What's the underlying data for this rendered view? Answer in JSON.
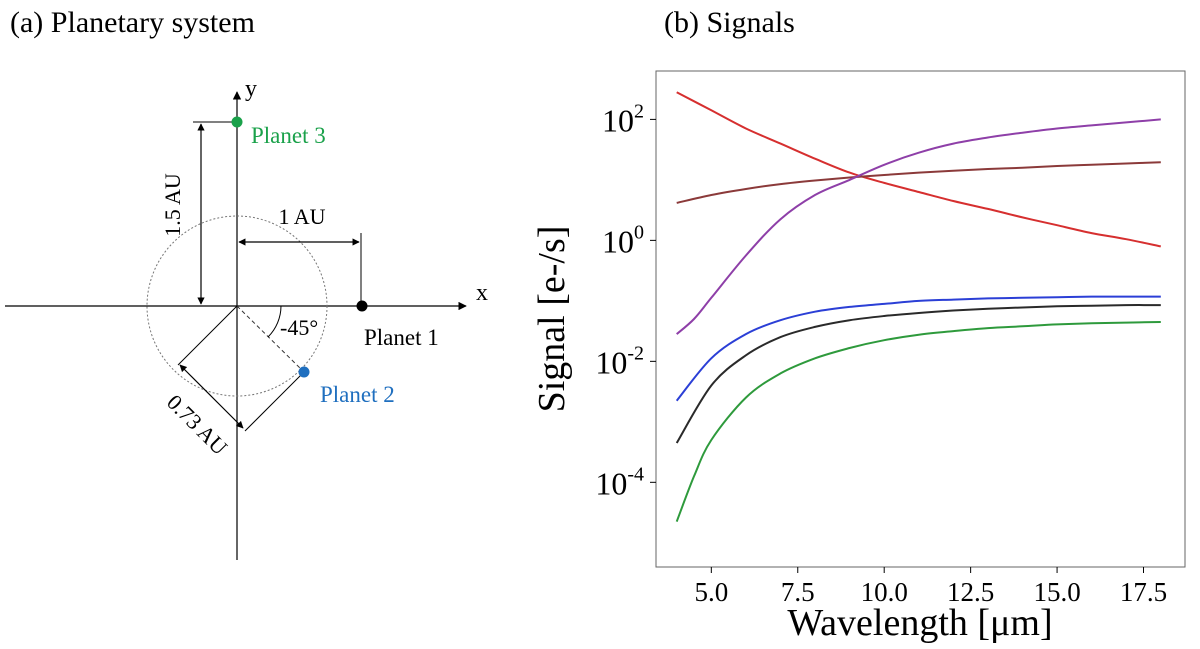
{
  "panel_a": {
    "title": "(a) Planetary system",
    "axis_x_label": "x",
    "axis_y_label": "y",
    "planets": [
      {
        "name": "Planet 1",
        "color": "#000000"
      },
      {
        "name": "Planet 2",
        "color": "#1f6fbf"
      },
      {
        "name": "Planet 3",
        "color": "#1aa14a"
      }
    ],
    "dim_15": "1.5 AU",
    "dim_1": "1 AU",
    "dim_073": "0.73 AU",
    "angle": "-45°"
  },
  "chart_data": {
    "type": "line",
    "title": "(b) Signals",
    "xlabel": "Wavelength [μm]",
    "ylabel": "Signal [e-/s]",
    "xlim": [
      3.4,
      18.7
    ],
    "ylim_log10": [
      -5.4,
      2.8
    ],
    "yscale": "log",
    "xticks": [
      "5.0",
      "7.5",
      "10.0",
      "12.5",
      "15.0",
      "17.5"
    ],
    "yticks": [
      {
        "base": "10",
        "exp": "2",
        "log10": 2
      },
      {
        "base": "10",
        "exp": "0",
        "log10": 0
      },
      {
        "base": "10",
        "exp": "-2",
        "log10": -2
      },
      {
        "base": "10",
        "exp": "-4",
        "log10": -4
      }
    ],
    "legend": "none",
    "grid": false,
    "series": [
      {
        "color": "#d62f2f",
        "x": [
          4,
          5,
          6,
          7,
          8,
          9,
          10,
          11,
          12,
          13,
          14,
          15,
          16,
          17,
          18
        ],
        "log10_y": [
          2.45,
          2.15,
          1.85,
          1.6,
          1.35,
          1.12,
          0.95,
          0.8,
          0.65,
          0.52,
          0.38,
          0.25,
          0.12,
          0.02,
          -0.1
        ]
      },
      {
        "color": "#8b3a3a",
        "x": [
          4,
          5,
          6,
          7,
          8,
          9,
          10,
          11,
          12,
          13,
          14,
          15,
          16,
          17,
          18
        ],
        "log10_y": [
          0.62,
          0.75,
          0.85,
          0.93,
          0.99,
          1.04,
          1.08,
          1.12,
          1.15,
          1.18,
          1.2,
          1.23,
          1.25,
          1.27,
          1.29
        ]
      },
      {
        "color": "#8e3fa8",
        "x": [
          4,
          4.5,
          5,
          6,
          7,
          8,
          9,
          10,
          11,
          12,
          13,
          14,
          15,
          16,
          17,
          18
        ],
        "log10_y": [
          -1.55,
          -1.3,
          -0.95,
          -0.25,
          0.35,
          0.75,
          1.0,
          1.25,
          1.45,
          1.6,
          1.7,
          1.78,
          1.85,
          1.9,
          1.95,
          2.0
        ]
      },
      {
        "color": "#2b3fd6",
        "x": [
          4,
          5,
          6,
          7,
          8,
          9,
          10,
          11,
          12,
          13,
          14,
          15,
          16,
          17,
          18
        ],
        "log10_y": [
          -2.65,
          -1.95,
          -1.55,
          -1.32,
          -1.18,
          -1.1,
          -1.05,
          -1.0,
          -0.98,
          -0.96,
          -0.95,
          -0.94,
          -0.93,
          -0.93,
          -0.93
        ]
      },
      {
        "color": "#2a2a2a",
        "x": [
          4,
          5,
          6,
          7,
          8,
          9,
          10,
          11,
          12,
          13,
          14,
          15,
          16,
          17,
          18
        ],
        "log10_y": [
          -3.35,
          -2.4,
          -1.9,
          -1.6,
          -1.43,
          -1.32,
          -1.25,
          -1.2,
          -1.16,
          -1.13,
          -1.11,
          -1.09,
          -1.08,
          -1.07,
          -1.07
        ]
      },
      {
        "color": "#2e9a3c",
        "x": [
          4,
          4.5,
          5,
          6,
          7,
          8,
          9,
          10,
          11,
          12,
          13,
          14,
          15,
          16,
          17,
          18
        ],
        "log10_y": [
          -4.65,
          -3.9,
          -3.3,
          -2.6,
          -2.2,
          -1.95,
          -1.78,
          -1.65,
          -1.56,
          -1.5,
          -1.45,
          -1.42,
          -1.39,
          -1.37,
          -1.36,
          -1.35
        ]
      }
    ]
  }
}
